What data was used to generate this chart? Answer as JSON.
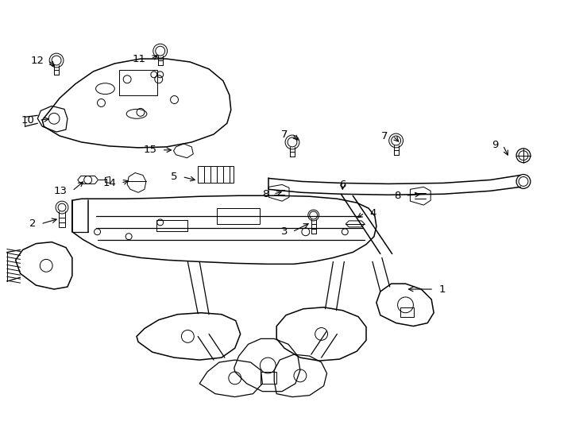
{
  "background_color": "#ffffff",
  "line_color": "#000000",
  "label_color": "#000000",
  "figsize": [
    7.34,
    5.4
  ],
  "dpi": 100,
  "labels_info": [
    [
      "1",
      548,
      175,
      512,
      175
    ],
    [
      "2",
      48,
      258,
      72,
      265
    ],
    [
      "3",
      368,
      248,
      392,
      260
    ],
    [
      "4",
      460,
      272,
      448,
      264
    ],
    [
      "5",
      228,
      318,
      248,
      313
    ],
    [
      "6",
      432,
      308,
      432,
      298
    ],
    [
      "8",
      344,
      296,
      358,
      300
    ],
    [
      "8",
      512,
      294,
      534,
      296
    ],
    [
      "7",
      368,
      372,
      378,
      362
    ],
    [
      "7",
      496,
      370,
      506,
      360
    ],
    [
      "9",
      636,
      358,
      644,
      342
    ],
    [
      "10",
      46,
      390,
      62,
      392
    ],
    [
      "11",
      188,
      468,
      200,
      474
    ],
    [
      "12",
      58,
      466,
      68,
      456
    ],
    [
      "13",
      88,
      300,
      105,
      314
    ],
    [
      "14",
      150,
      310,
      163,
      314
    ],
    [
      "15",
      202,
      352,
      218,
      352
    ]
  ]
}
